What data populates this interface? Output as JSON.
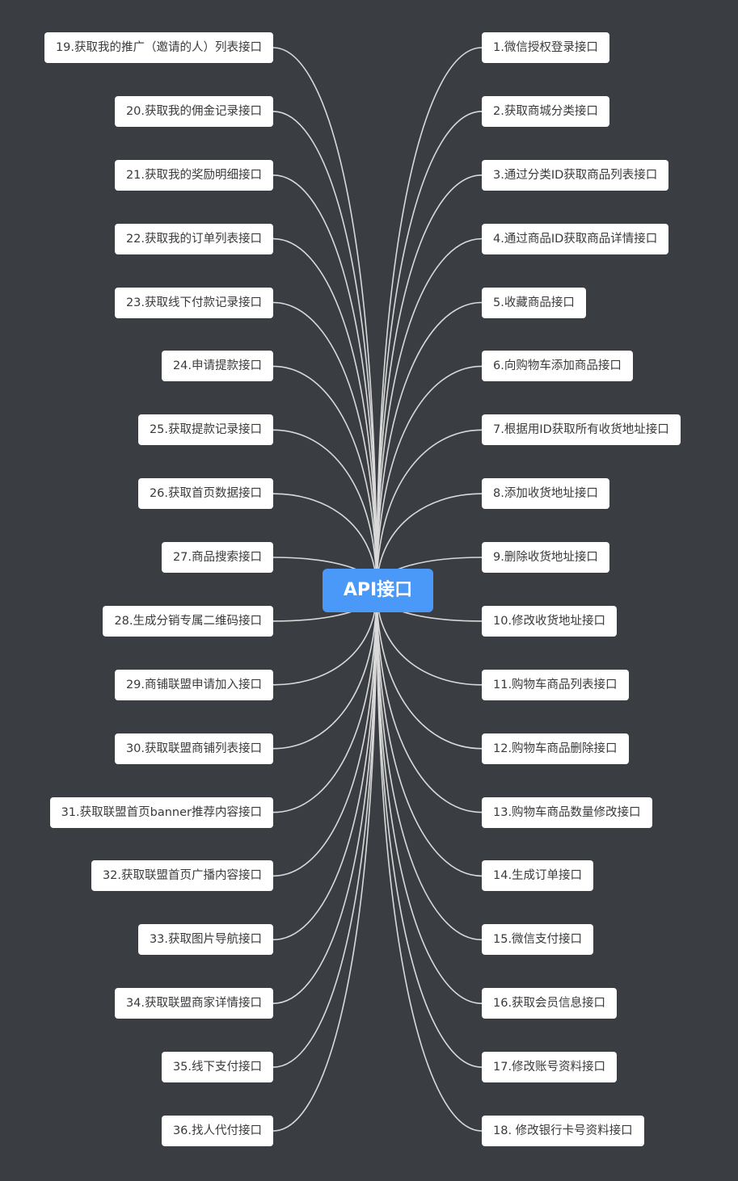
{
  "root": {
    "label": "API接口",
    "color": "#4a98f7"
  },
  "colors": {
    "background": "#3a3d42",
    "node": "#ffffff",
    "line": "#d9d9d9"
  },
  "right_branches": [
    "1.微信授权登录接口",
    "2.获取商城分类接口",
    "3.通过分类ID获取商品列表接口",
    "4.通过商品ID获取商品详情接口",
    "5.收藏商品接口",
    "6.向购物车添加商品接口",
    "7.根据用ID获取所有收货地址接口",
    "8.添加收货地址接口",
    "9.删除收货地址接口",
    "10.修改收货地址接口",
    "11.购物车商品列表接口",
    "12.购物车商品删除接口",
    "13.购物车商品数量修改接口",
    "14.生成订单接口",
    "15.微信支付接口",
    "16.获取会员信息接口",
    "17.修改账号资料接口",
    "18. 修改银行卡号资料接口"
  ],
  "left_branches": [
    "19.获取我的推广（邀请的人）列表接口",
    "20.获取我的佣金记录接口",
    "21.获取我的奖励明细接口",
    "22.获取我的订单列表接口",
    "23.获取线下付款记录接口",
    "24.申请提款接口",
    "25.获取提款记录接口",
    "26.获取首页数据接口",
    "27.商品搜索接口",
    "28.生成分销专属二维码接口",
    "29.商铺联盟申请加入接口",
    "30.获取联盟商铺列表接口",
    "31.获取联盟首页banner推荐内容接口",
    "32.获取联盟首页广播内容接口",
    "33.获取图片导航接口",
    "34.获取联盟商家详情接口",
    "35.线下支付接口",
    "36.找人代付接口"
  ]
}
